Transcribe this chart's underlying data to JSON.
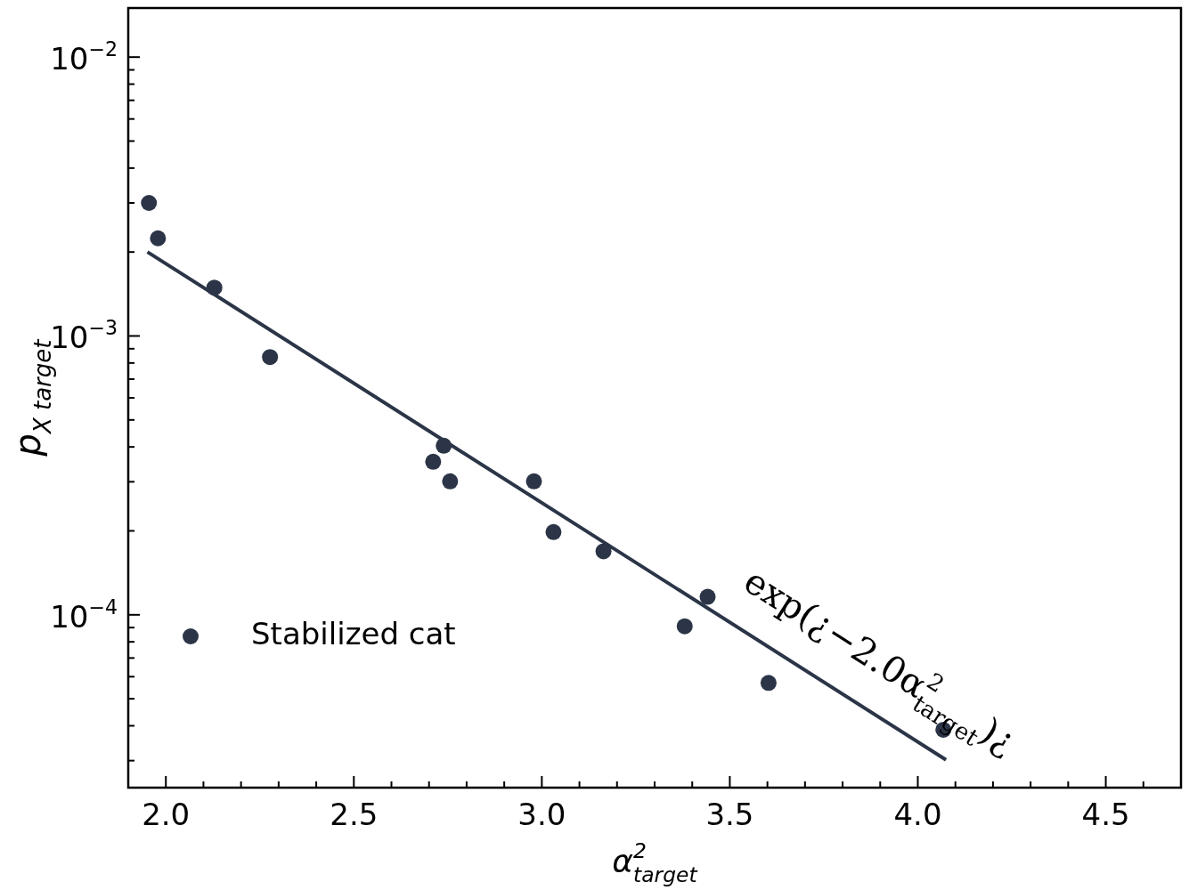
{
  "chart_data": {
    "type": "scatter",
    "xlabel": "α$^{2}$$_{target}$",
    "ylabel": "p$_{X target}$",
    "log": "y",
    "legend": "bottom left",
    "xlim": [
      1.9,
      4.7
    ],
    "ylim": [
      2.4e-05,
      0.015
    ],
    "xticks": [
      {
        "value": 2,
        "label": "2.0"
      },
      {
        "value": 2.1,
        "label": null
      },
      {
        "value": 2.2,
        "label": null
      },
      {
        "value": 2.3,
        "label": null
      },
      {
        "value": 2.4,
        "label": null
      },
      {
        "value": 2.5,
        "label": "2.5"
      },
      {
        "value": 2.6,
        "label": null
      },
      {
        "value": 2.7,
        "label": null
      },
      {
        "value": 2.8,
        "label": null
      },
      {
        "value": 2.9,
        "label": null
      },
      {
        "value": 3,
        "label": "3.0"
      },
      {
        "value": 3.1,
        "label": null
      },
      {
        "value": 3.2,
        "label": null
      },
      {
        "value": 3.3,
        "label": null
      },
      {
        "value": 3.4,
        "label": null
      },
      {
        "value": 3.5,
        "label": "3.5"
      },
      {
        "value": 3.6,
        "label": null
      },
      {
        "value": 3.7,
        "label": null
      },
      {
        "value": 3.8,
        "label": null
      },
      {
        "value": 3.9,
        "label": null
      },
      {
        "value": 4,
        "label": "4.0"
      },
      {
        "value": 4.1,
        "label": null
      },
      {
        "value": 4.2,
        "label": null
      },
      {
        "value": 4.3,
        "label": null
      },
      {
        "value": 4.4,
        "label": null
      },
      {
        "value": 4.5,
        "label": "4.5"
      },
      {
        "value": 4.6,
        "label": null
      }
    ],
    "yticks": [
      {
        "value": 3e-05,
        "label": null
      },
      {
        "value": 4e-05,
        "label": null
      },
      {
        "value": 5e-05,
        "label": null
      },
      {
        "value": 6e-05,
        "label": null
      },
      {
        "value": 7e-05,
        "label": null
      },
      {
        "value": 8e-05,
        "label": null
      },
      {
        "value": 9e-05,
        "label": null
      },
      {
        "value": 0.0001,
        "label": "10$^{−4}$"
      },
      {
        "value": 0.0002,
        "label": null
      },
      {
        "value": 0.0003,
        "label": null
      },
      {
        "value": 0.0004,
        "label": null
      },
      {
        "value": 0.0005,
        "label": null
      },
      {
        "value": 0.0006,
        "label": null
      },
      {
        "value": 0.0007,
        "label": null
      },
      {
        "value": 0.0008,
        "label": null
      },
      {
        "value": 0.0009,
        "label": null
      },
      {
        "value": 0.001,
        "label": "10$^{−3}$"
      },
      {
        "value": 0.002,
        "label": null
      },
      {
        "value": 0.003,
        "label": null
      },
      {
        "value": 0.004,
        "label": null
      },
      {
        "value": 0.005,
        "label": null
      },
      {
        "value": 0.006,
        "label": null
      },
      {
        "value": 0.007,
        "label": null
      },
      {
        "value": 0.008,
        "label": null
      },
      {
        "value": 0.009,
        "label": null
      },
      {
        "value": 0.01,
        "label": "10$^{−2}$"
      }
    ],
    "series": [
      {
        "name": "Stabilized cat",
        "marker": "circle",
        "color": "#2b3547",
        "x": [
          1.955,
          1.979,
          2.129,
          2.277,
          2.711,
          2.739,
          2.756,
          2.979,
          3.031,
          3.164,
          3.38,
          3.441,
          3.603,
          4.068
        ],
        "values": [
          0.003,
          0.00224,
          0.00149,
          0.00084,
          0.000354,
          0.000404,
          0.000301,
          0.000301,
          0.000198,
          0.000169,
          9.1e-05,
          0.000116,
          5.7e-05,
          3.87e-05
        ]
      },
      {
        "type": "line",
        "color": "#2b3547",
        "x": [
          1.951,
          4.075
        ],
        "values": [
          0.002,
          3.02e-05
        ]
      }
    ],
    "annotations": [
      "exp(¿−2.0α$^{2}$$_{target}$)¿"
    ]
  }
}
